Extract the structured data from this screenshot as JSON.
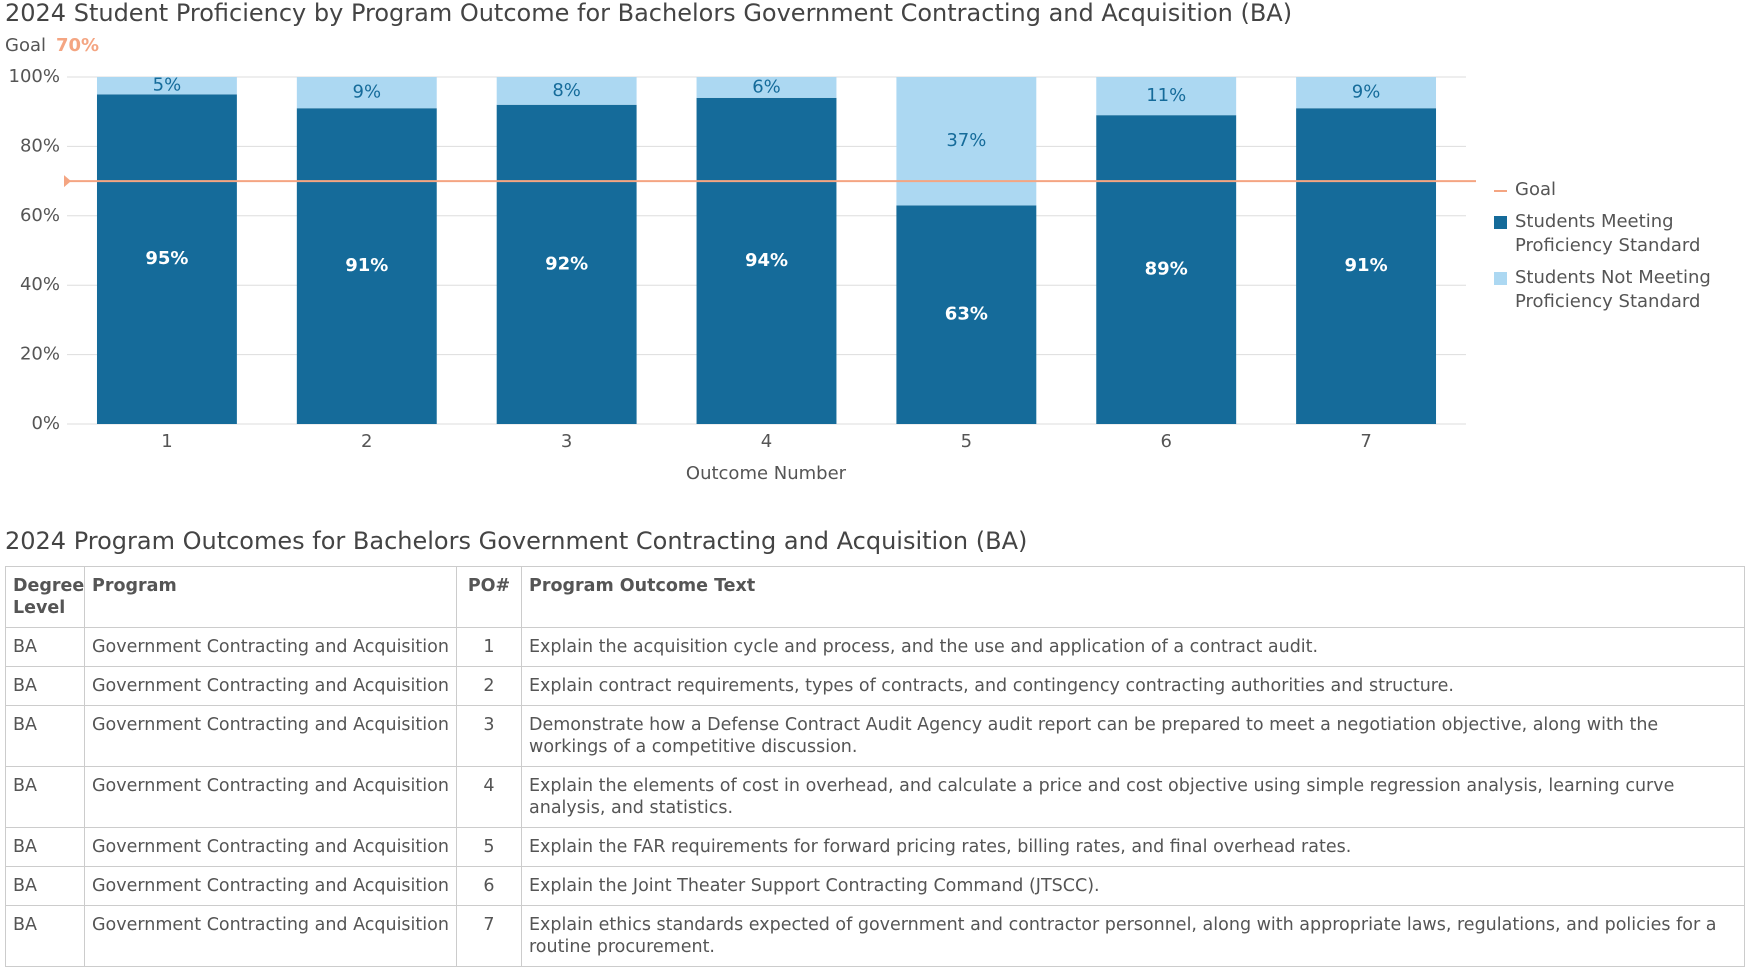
{
  "chart_data": {
    "type": "bar",
    "stacked": true,
    "title": "2024 Student Proficiency by Program Outcome for Bachelors Government Contracting and Acquisition (BA)",
    "goal": {
      "name": "Goal",
      "value": 70,
      "label": "70%",
      "color": "#f4a582"
    },
    "x_label": "Outcome Number",
    "categories": [
      "1",
      "2",
      "3",
      "4",
      "5",
      "6",
      "7"
    ],
    "series": [
      {
        "name": "Students Meeting Proficiency Standard",
        "color": "#156b9a",
        "label_color": "#ffffff",
        "values": [
          95,
          91,
          92,
          94,
          63,
          89,
          91
        ],
        "value_labels": [
          "95%",
          "91%",
          "92%",
          "94%",
          "63%",
          "89%",
          "91%"
        ]
      },
      {
        "name": "Students Not Meeting Proficiency Standard",
        "color": "#acd8f2",
        "label_color": "#156b9a",
        "values": [
          5,
          9,
          8,
          6,
          37,
          11,
          9
        ],
        "value_labels": [
          "5%",
          "9%",
          "8%",
          "6%",
          "37%",
          "11%",
          "9%"
        ]
      }
    ],
    "ylim": [
      0,
      100
    ],
    "yticks": [
      {
        "value": 0,
        "label": "0%"
      },
      {
        "value": 20,
        "label": "20%"
      },
      {
        "value": 40,
        "label": "40%"
      },
      {
        "value": 60,
        "label": "60%"
      },
      {
        "value": 80,
        "label": "80%"
      },
      {
        "value": 100,
        "label": "100%"
      }
    ],
    "grid": true
  },
  "table": {
    "title": "2024 Program Outcomes for Bachelors Government Contracting and Acquisition (BA)",
    "header": [
      "Degree Level",
      "Program",
      "PO#",
      "Program Outcome Text"
    ],
    "rows": [
      [
        "BA",
        "Government Contracting and Acquisition",
        "1",
        "Explain the acquisition cycle and process, and the use and application of a contract audit."
      ],
      [
        "BA",
        "Government Contracting and Acquisition",
        "2",
        "Explain contract requirements, types of contracts, and contingency contracting authorities and structure."
      ],
      [
        "BA",
        "Government Contracting and Acquisition",
        "3",
        "Demonstrate how a Defense Contract Audit Agency audit report can be prepared to meet a negotiation objective, along with the workings of a competitive discussion."
      ],
      [
        "BA",
        "Government Contracting and Acquisition",
        "4",
        "Explain the elements of cost in overhead, and calculate a price and cost objective using simple regression analysis, learning curve analysis, and statistics."
      ],
      [
        "BA",
        "Government Contracting and Acquisition",
        "5",
        "Explain the FAR requirements for forward pricing rates, billing rates, and final overhead rates."
      ],
      [
        "BA",
        "Government Contracting and Acquisition",
        "6",
        "Explain the Joint Theater Support Contracting Command (JTSCC)."
      ],
      [
        "BA",
        "Government Contracting and Acquisition",
        "7",
        "Explain ethics standards expected of government and contractor personnel, along with appropriate laws, regulations, and policies for a routine procurement."
      ]
    ]
  }
}
